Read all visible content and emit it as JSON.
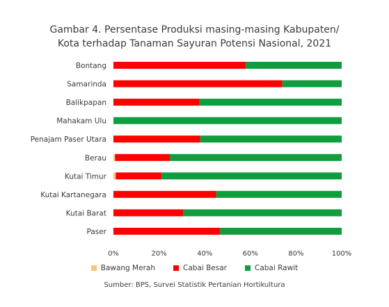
{
  "chart_data": {
    "type": "bar",
    "orientation": "horizontal",
    "stacked": true,
    "title_line1": "Gambar 4. Persentase Produksi masing-masing Kabupaten/",
    "title_line2": "Kota terhadap Tanaman Sayuran Potensi Nasional, 2021",
    "categories": [
      "Bontang",
      "Samarinda",
      "Balikpapan",
      "Mahakam Ulu",
      "Penajam Paser Utara",
      "Berau",
      "Kutai Timur",
      "Kutai Kartanegara",
      "Kutai Barat",
      "Paser"
    ],
    "series": [
      {
        "name": "Bawang Merah",
        "color": "#f4c77a",
        "values": [
          0,
          0,
          0,
          0,
          0,
          0.7,
          1,
          0,
          0,
          0
        ]
      },
      {
        "name": "Cabai Besar",
        "color": "#ff0000",
        "values": [
          58,
          74,
          37.5,
          0,
          38,
          24,
          20,
          45,
          30.5,
          46.5
        ]
      },
      {
        "name": "Cabai Rawit",
        "color": "#0f9d3e",
        "values": [
          42,
          26,
          62.5,
          100,
          62,
          75.3,
          79,
          55,
          69.5,
          53.5
        ]
      }
    ],
    "xlim": [
      0,
      100
    ],
    "xticks": [
      "0%",
      "20%",
      "40%",
      "60%",
      "80%",
      "100%"
    ],
    "grid": false,
    "legend_position": "bottom",
    "source": "Sumber: BPS, Survei Statistik Pertanian Hortikultura"
  }
}
